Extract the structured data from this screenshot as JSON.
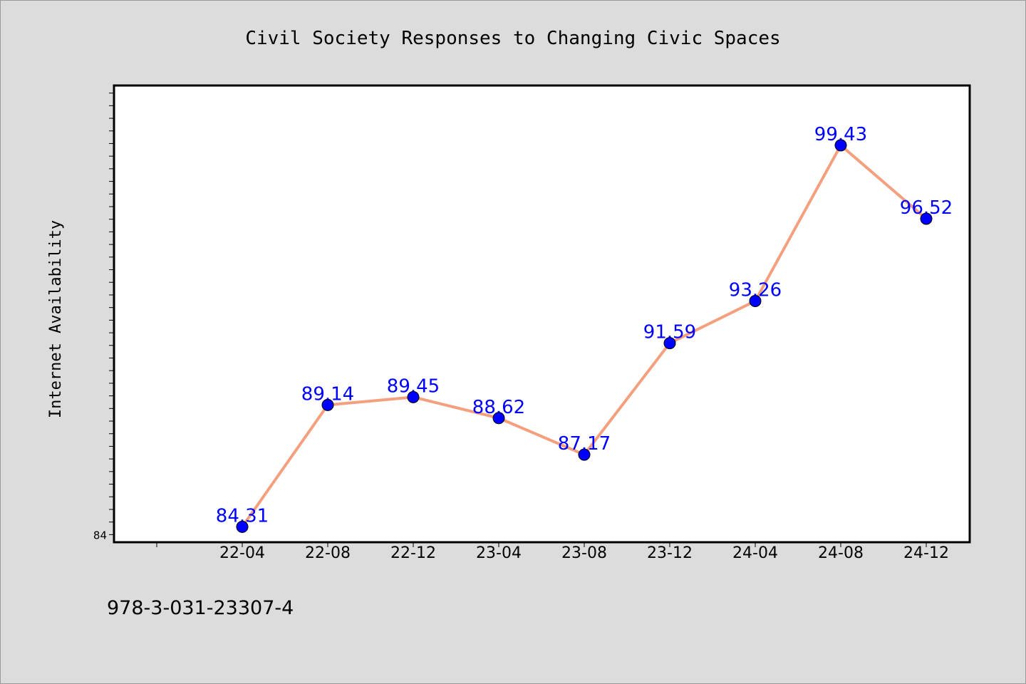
{
  "chart_data": {
    "type": "line",
    "title": "Civil Society Responses to Changing Civic Spaces",
    "xlabel": "",
    "ylabel": "Internet Availability",
    "categories": [
      "22-04",
      "22-08",
      "22-12",
      "23-04",
      "23-08",
      "23-12",
      "24-04",
      "24-08",
      "24-12"
    ],
    "series": [
      {
        "values": [
          84.31,
          89.14,
          89.45,
          88.62,
          87.17,
          91.59,
          93.26,
          99.43,
          96.52
        ],
        "data_labels": [
          "84.31",
          "89.14",
          "89.45",
          "88.62",
          "87.17",
          "91.59",
          "93.26",
          "99.43",
          "96.52"
        ]
      }
    ],
    "ylim": [
      83.7,
      101.8
    ],
    "ytick_labels": [
      "84"
    ],
    "grid": false,
    "legend": "none",
    "colors": {
      "line": "#f4a07f",
      "marker": "#0000ff",
      "data_label": "#0000ff",
      "plot_background": "#ffffff",
      "page_background": "#dcdcdc"
    }
  },
  "footer_text": "978-3-031-23307-4"
}
